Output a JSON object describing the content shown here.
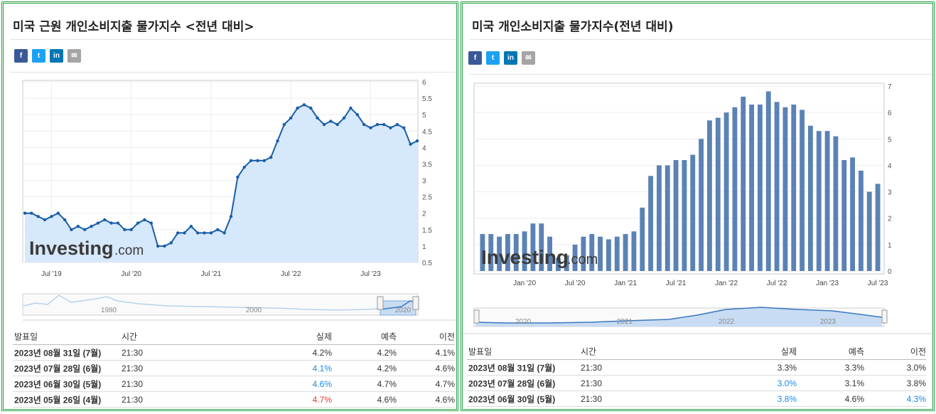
{
  "left": {
    "title": "미국 근원 개인소비지출 물가지수 <전년 대비>",
    "social": [
      "f",
      "t",
      "in",
      "✉"
    ],
    "chart_data": {
      "type": "area",
      "x_ticks": [
        "Jul '19",
        "Jul '20",
        "Jul '21",
        "Jul '22",
        "Jul '23"
      ],
      "y_ticks": [
        "0.5",
        "1",
        "1.5",
        "2",
        "2.5",
        "3",
        "3.5",
        "4",
        "4.5",
        "5",
        "5.5",
        "6"
      ],
      "ylim": [
        0.5,
        6
      ],
      "values": [
        2.0,
        2.0,
        1.9,
        1.8,
        1.9,
        2.0,
        1.8,
        1.5,
        1.6,
        1.5,
        1.6,
        1.7,
        1.8,
        1.7,
        1.7,
        1.5,
        1.5,
        1.7,
        1.8,
        1.7,
        1.0,
        1.0,
        1.1,
        1.4,
        1.4,
        1.6,
        1.4,
        1.4,
        1.4,
        1.5,
        1.4,
        1.9,
        3.1,
        3.4,
        3.6,
        3.6,
        3.6,
        3.7,
        4.2,
        4.7,
        4.9,
        5.2,
        5.3,
        5.2,
        4.9,
        4.7,
        4.8,
        4.7,
        4.9,
        5.2,
        5.0,
        4.7,
        4.6,
        4.7,
        4.7,
        4.6,
        4.7,
        4.6,
        4.1,
        4.2
      ],
      "navigator_labels": [
        "1980",
        "2000",
        "2020"
      ],
      "watermark": "Investing",
      "watermark_suffix": ".com"
    },
    "table": {
      "headers": {
        "date": "발표일",
        "time": "시간",
        "actual": "실제",
        "forecast": "예측",
        "previous": "이전"
      },
      "rows": [
        {
          "date": "2023년 08월 31일 (7월)",
          "time": "21:30",
          "actual": "4.2%",
          "forecast": "4.2%",
          "previous": "4.1%",
          "actual_color": "#333333"
        },
        {
          "date": "2023년 07월 28일 (6월)",
          "time": "21:30",
          "actual": "4.1%",
          "forecast": "4.2%",
          "previous": "4.6%",
          "actual_color": "#1e88e5"
        },
        {
          "date": "2023년 06월 30일 (5월)",
          "time": "21:30",
          "actual": "4.6%",
          "forecast": "4.7%",
          "previous": "4.7%",
          "actual_color": "#1e88e5"
        },
        {
          "date": "2023년 05월 26일 (4월)",
          "time": "21:30",
          "actual": "4.7%",
          "forecast": "4.6%",
          "previous": "4.6%",
          "actual_color": "#e53935"
        }
      ]
    }
  },
  "right": {
    "title": "미국 개인소비지출 물가지수(전년 대비)",
    "social": [
      "f",
      "t",
      "in",
      "✉"
    ],
    "chart_data": {
      "type": "bar",
      "x_ticks": [
        "Jan '20",
        "Jul '20",
        "Jan '21",
        "Jul '21",
        "Jan '22",
        "Jul '22",
        "Jan '23",
        "Jul '23"
      ],
      "y_ticks": [
        "0",
        "1",
        "2",
        "3",
        "4",
        "5",
        "6",
        "7"
      ],
      "ylim": [
        0,
        7
      ],
      "values": [
        1.4,
        1.4,
        1.3,
        1.4,
        1.4,
        1.5,
        1.8,
        1.8,
        1.3,
        0.5,
        0.6,
        1.0,
        1.3,
        1.4,
        1.3,
        1.2,
        1.3,
        1.4,
        1.5,
        2.4,
        3.6,
        4.0,
        4.0,
        4.2,
        4.2,
        4.4,
        5.0,
        5.7,
        5.8,
        6.0,
        6.2,
        6.6,
        6.3,
        6.3,
        6.8,
        6.4,
        6.2,
        6.3,
        6.1,
        5.5,
        5.3,
        5.3,
        5.1,
        4.2,
        4.3,
        3.8,
        3.0,
        3.3
      ],
      "navigator_labels": [
        "2020",
        "2021",
        "2022",
        "2023"
      ],
      "watermark": "Investing",
      "watermark_suffix": ".com"
    },
    "table": {
      "headers": {
        "date": "발표일",
        "time": "시간",
        "actual": "실제",
        "forecast": "예측",
        "previous": "이전"
      },
      "rows": [
        {
          "date": "2023년 08월 31일 (7월)",
          "time": "21:30",
          "actual": "3.3%",
          "forecast": "3.3%",
          "previous": "3.0%",
          "actual_color": "#333333"
        },
        {
          "date": "2023년 07월 28일 (6월)",
          "time": "21:30",
          "actual": "3.0%",
          "forecast": "3.1%",
          "previous": "3.8%",
          "actual_color": "#1e88e5"
        },
        {
          "date": "2023년 06월 30일 (5월)",
          "time": "21:30",
          "actual": "3.8%",
          "forecast": "4.6%",
          "previous": "4.3%",
          "actual_color": "#1e88e5",
          "previous_color": "#1e88e5"
        }
      ]
    }
  }
}
